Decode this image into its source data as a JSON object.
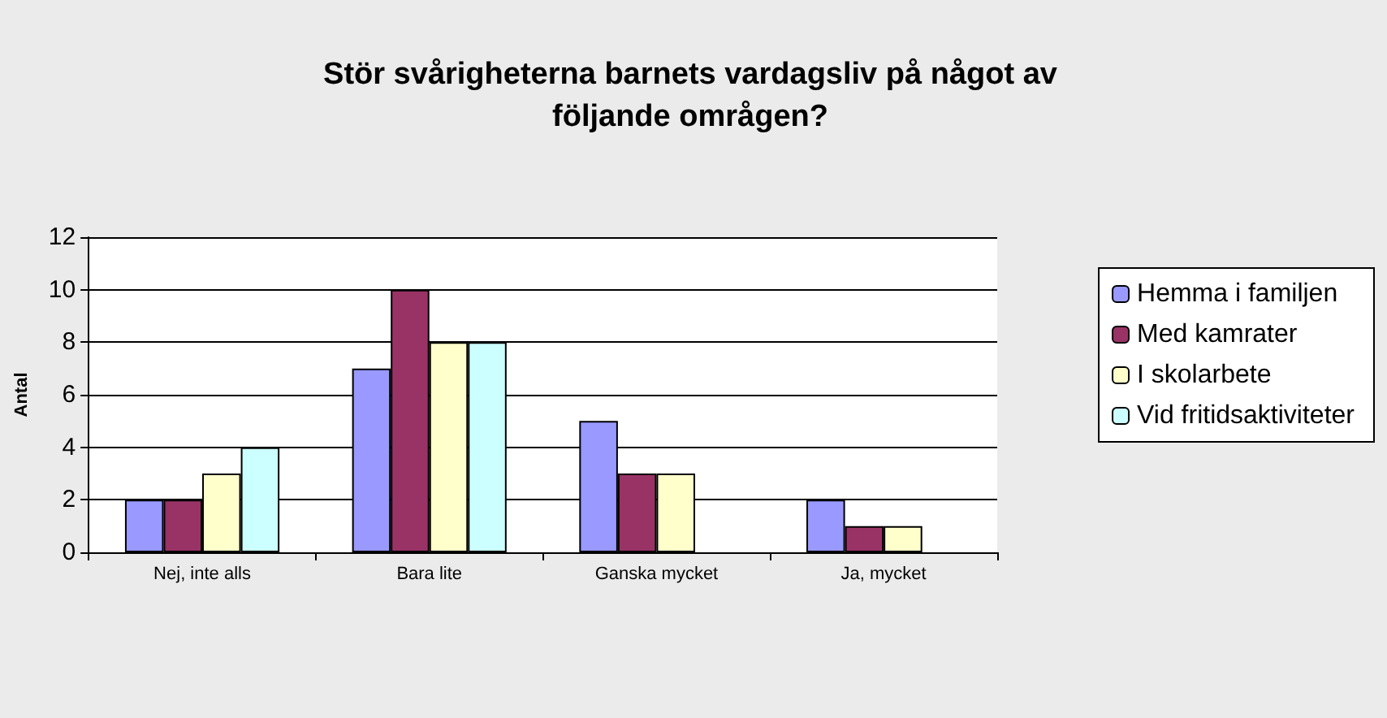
{
  "chart_data": {
    "type": "bar",
    "title": "Stör svårigheterna barnets vardagsliv på något av\nföljande områgen?",
    "ylabel": "Antal",
    "categories": [
      "Nej, inte alls",
      "Bara lite",
      "Ganska mycket",
      "Ja, mycket"
    ],
    "series": [
      {
        "name": "Hemma i familjen",
        "color": "#9999ff",
        "values": [
          2,
          7,
          5,
          2
        ]
      },
      {
        "name": "Med kamrater",
        "color": "#993366",
        "values": [
          2,
          10,
          3,
          1
        ]
      },
      {
        "name": "I skolarbete",
        "color": "#ffffcc",
        "values": [
          3,
          8,
          3,
          1
        ]
      },
      {
        "name": "Vid fritidsaktiviteter",
        "color": "#ccffff",
        "values": [
          4,
          8,
          0,
          0
        ]
      }
    ],
    "ylim": [
      0,
      12
    ],
    "yticks": [
      0,
      2,
      4,
      6,
      8,
      10,
      12
    ],
    "grid": "y",
    "legend": "right"
  }
}
